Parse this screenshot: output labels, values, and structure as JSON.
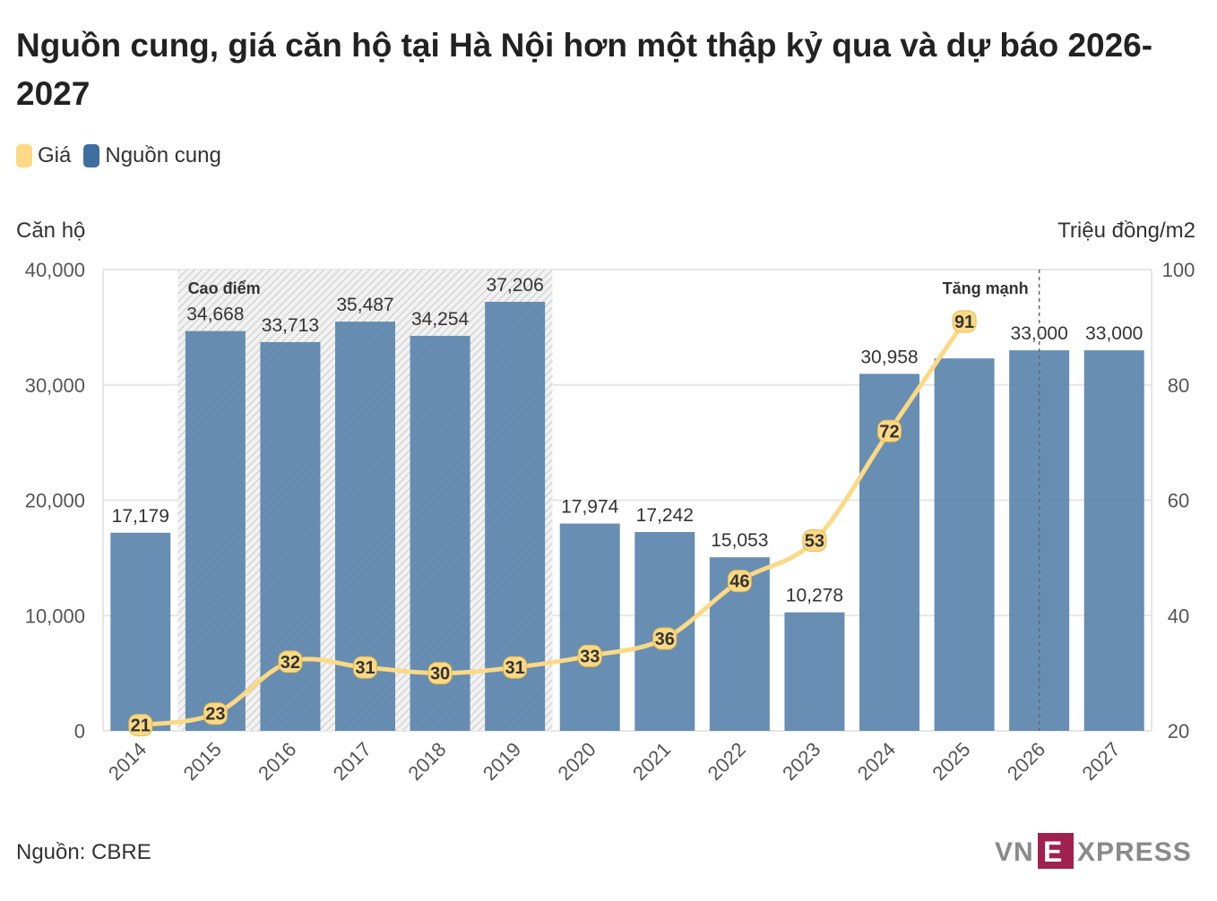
{
  "title": "Nguồn cung, giá căn hộ tại Hà Nội hơn một thập kỷ qua và dự báo 2026-2027",
  "legend": [
    {
      "label": "Giá",
      "color": "#fbd985"
    },
    {
      "label": "Nguồn cung",
      "color": "#3f6f9f"
    }
  ],
  "left_axis_title": "Căn hộ",
  "right_axis_title": "Triệu đồng/m2",
  "source": "Nguồn: CBRE",
  "logo_text": "VNEXPRESS",
  "chart_data": {
    "type": "bar",
    "categories": [
      "2014",
      "2015",
      "2016",
      "2017",
      "2018",
      "2019",
      "2020",
      "2021",
      "2022",
      "2023",
      "2024",
      "2025",
      "2026",
      "2027"
    ],
    "series": [
      {
        "name": "Nguồn cung",
        "type": "bar",
        "axis": "left",
        "color": "#5b84ad",
        "values": [
          17179,
          34668,
          33713,
          35487,
          34254,
          37206,
          17974,
          17242,
          15053,
          10278,
          30958,
          32300,
          33000,
          33000
        ],
        "labels": [
          "17,179",
          "34,668",
          "33,713",
          "35,487",
          "34,254",
          "37,206",
          "17,974",
          "17,242",
          "15,053",
          "10,278",
          "30,958",
          "",
          "33,000",
          "33,000"
        ]
      },
      {
        "name": "Giá",
        "type": "line",
        "axis": "right",
        "color": "#fbd985",
        "values": [
          21,
          23,
          32,
          31,
          30,
          31,
          33,
          36,
          46,
          53,
          72,
          91,
          null,
          null
        ],
        "labels": [
          "21",
          "23",
          "32",
          "31",
          "30",
          "31",
          "33",
          "36",
          "46",
          "53",
          "72",
          "91",
          "",
          ""
        ]
      }
    ],
    "left_axis": {
      "min": 0,
      "max": 40000,
      "ticks": [
        0,
        10000,
        20000,
        30000,
        40000
      ],
      "tick_labels": [
        "0",
        "10,000",
        "20,000",
        "30,000",
        "40,000"
      ]
    },
    "right_axis": {
      "min": 20,
      "max": 100,
      "ticks": [
        20,
        40,
        60,
        80,
        100
      ],
      "tick_labels": [
        "20",
        "40",
        "60",
        "80",
        "100"
      ]
    },
    "annotations": [
      {
        "text": "Cao điểm",
        "from": "2015",
        "to": "2019",
        "style": "hatched-band"
      },
      {
        "text": "Tăng mạnh",
        "at": "2026",
        "style": "dashed-line"
      }
    ]
  }
}
